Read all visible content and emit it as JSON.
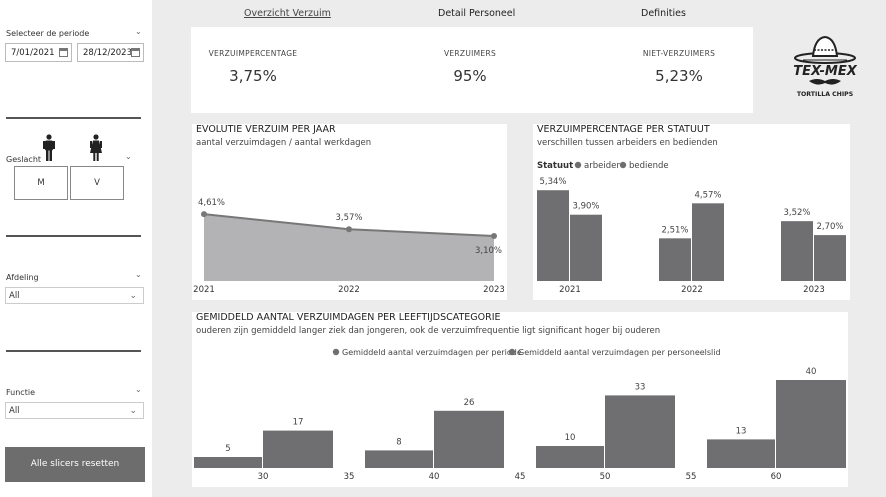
{
  "tabs": [
    {
      "label": "Overzicht Verzuim",
      "active": true
    },
    {
      "label": "Detail Personeel",
      "active": false
    },
    {
      "label": "Definities",
      "active": false
    }
  ],
  "sidebar": {
    "period_label": "Selecteer de periode",
    "date_start": "7/01/2021",
    "date_end": "28/12/2023",
    "gender_label": "Geslacht",
    "gender_buttons": [
      "M",
      "V"
    ],
    "department_label": "Afdeling",
    "department_value": "All",
    "function_label": "Functie",
    "function_value": "All",
    "reset_label": "Alle slicers resetten"
  },
  "kpis": [
    {
      "label": "VERZUIMPERCENTAGE",
      "value": "3,75%"
    },
    {
      "label": "VERZUIMERS",
      "value": "95%"
    },
    {
      "label": "NIET-VERZUIMERS",
      "value": "5,23%"
    }
  ],
  "logo": {
    "line1": "TEX-MEX",
    "line2": "TORTILLA CHIPS"
  },
  "colors": {
    "dark_bar": "#6f6f72",
    "light_area": "#b3b3b5",
    "line": "#777777"
  },
  "chart_data": [
    {
      "type": "area",
      "title": "EVOLUTIE VERZUIM PER JAAR",
      "subtitle": "aantal verzuimdagen / aantal werkdagen",
      "x": [
        "2021",
        "2022",
        "2023"
      ],
      "values": [
        4.61,
        3.57,
        3.1
      ],
      "labels": [
        "4,61%",
        "3,57%",
        "3,10%"
      ]
    },
    {
      "type": "bar",
      "title": "VERZUIMPERCENTAGE PER STATUUT",
      "subtitle": "verschillen tussen arbeiders en bedienden",
      "legend_title": "Statuut",
      "categories": [
        "2021",
        "2022",
        "2023"
      ],
      "series": [
        {
          "name": "arbeider",
          "values": [
            5.34,
            2.51,
            3.52
          ],
          "labels": [
            "5,34%",
            "2,51%",
            "3,52%"
          ]
        },
        {
          "name": "bediende",
          "values": [
            3.9,
            4.57,
            2.7
          ],
          "labels": [
            "3,90%",
            "4,57%",
            "2,70%"
          ]
        }
      ]
    },
    {
      "type": "bar",
      "title": "GEMIDDELD AANTAL VERZUIMDAGEN PER LEEFTIJDSCATEGORIE",
      "subtitle": "ouderen zijn gemiddeld langer ziek dan jongeren, ook de verzuimfrequentie ligt significant hoger bij ouderen",
      "x_ticks": [
        "30",
        "35",
        "40",
        "45",
        "50",
        "55",
        "60"
      ],
      "categories": [
        "30",
        "40",
        "50",
        "60"
      ],
      "series": [
        {
          "name": "Gemiddeld aantal verzuimdagen per periode",
          "values": [
            5,
            8,
            10,
            13
          ]
        },
        {
          "name": "Gemiddeld aantal verzuimdagen per personeelslid",
          "values": [
            17,
            26,
            33,
            40
          ]
        }
      ]
    }
  ]
}
